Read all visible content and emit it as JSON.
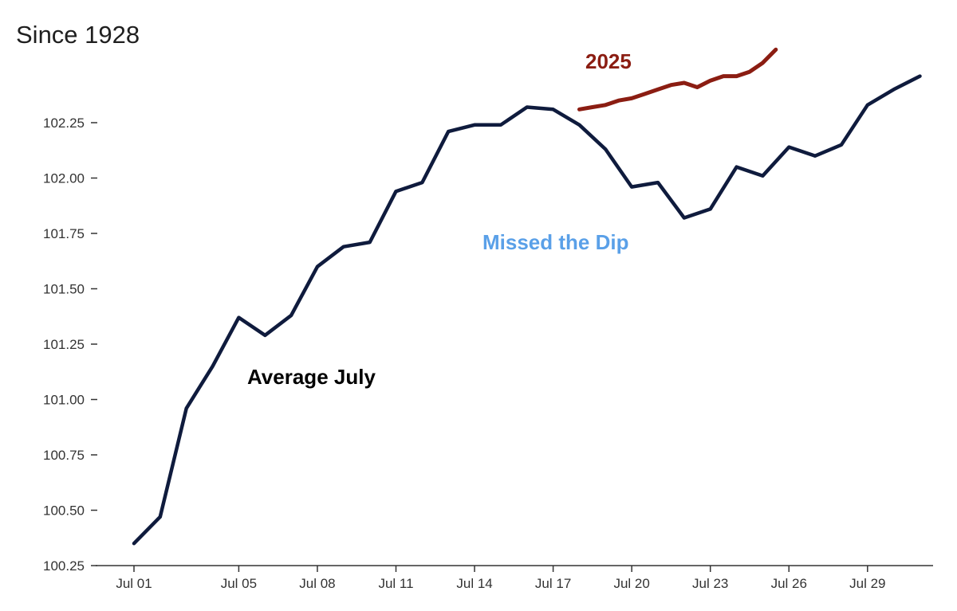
{
  "subtitle": "Since 1928",
  "colors": {
    "average_line": "#0f1b3d",
    "line_2025": "#8b1d12",
    "annotation_average": "#000000",
    "annotation_2025": "#8b1d12",
    "annotation_dip": "#5aa0e8",
    "axis": "#333333"
  },
  "chart_data": {
    "type": "line",
    "title": "",
    "xlabel": "",
    "ylabel": "",
    "ylim": [
      100.25,
      102.6
    ],
    "y_ticks": [
      100.25,
      100.5,
      100.75,
      101.0,
      101.25,
      101.5,
      101.75,
      102.0,
      102.25
    ],
    "y_tick_labels": [
      "100.25",
      "100.50",
      "100.75",
      "101.00",
      "101.25",
      "101.50",
      "101.75",
      "102.00",
      "102.25"
    ],
    "x_tick_days": [
      1,
      5,
      8,
      11,
      14,
      17,
      20,
      23,
      26,
      29
    ],
    "x_tick_labels": [
      "Jul 01",
      "Jul 05",
      "Jul 08",
      "Jul 11",
      "Jul 14",
      "Jul 17",
      "Jul 20",
      "Jul 23",
      "Jul 26",
      "Jul 29"
    ],
    "grid": false,
    "series": [
      {
        "name": "Average July",
        "x": [
          1,
          2,
          3,
          4,
          5,
          6,
          7,
          8,
          9,
          10,
          11,
          12,
          13,
          14,
          15,
          16,
          17,
          18,
          19,
          20,
          21,
          22,
          23,
          24,
          25,
          26,
          27,
          28,
          29,
          30,
          31
        ],
        "values": [
          100.35,
          100.47,
          100.96,
          101.15,
          101.37,
          101.29,
          101.38,
          101.6,
          101.69,
          101.71,
          101.94,
          101.98,
          102.21,
          102.24,
          102.24,
          102.32,
          102.31,
          102.24,
          102.13,
          101.96,
          101.98,
          101.82,
          101.86,
          102.05,
          102.01,
          102.14,
          102.1,
          102.15,
          102.33,
          102.4,
          102.46
        ]
      },
      {
        "name": "2025",
        "x": [
          18,
          18.5,
          19,
          19.5,
          20,
          20.5,
          21,
          21.5,
          22,
          22.5,
          23,
          23.5,
          24,
          24.5,
          25,
          25.5
        ],
        "values": [
          102.31,
          102.32,
          102.33,
          102.35,
          102.36,
          102.38,
          102.4,
          102.42,
          102.43,
          102.41,
          102.44,
          102.46,
          102.46,
          102.48,
          102.52,
          102.58
        ]
      }
    ],
    "annotations": {
      "average": "Average July",
      "series_2025": "2025",
      "dip": "Missed the Dip"
    }
  }
}
